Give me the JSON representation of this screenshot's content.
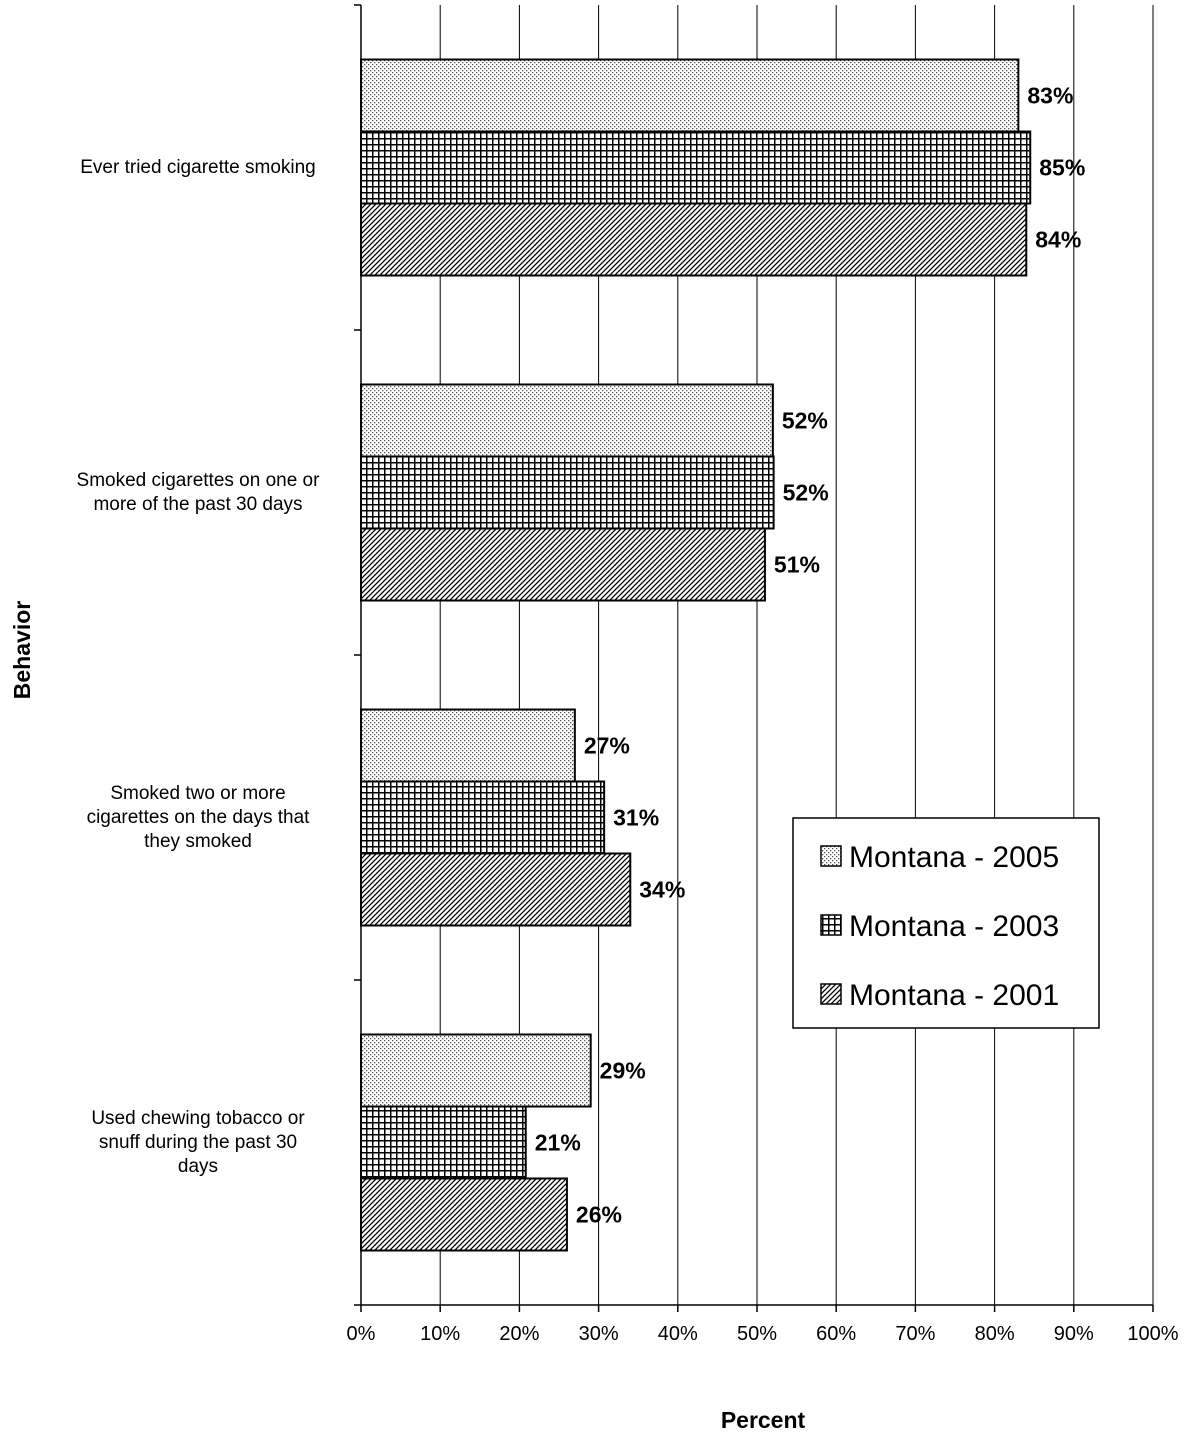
{
  "chart_data": {
    "type": "bar",
    "orientation": "horizontal",
    "categories": [
      "Ever tried cigarette smoking",
      "Smoked cigarettes on one or more of the past 30 days",
      "Smoked two or more cigarettes on the days that they smoked",
      "Used chewing tobacco or snuff during the past 30 days"
    ],
    "category_lines": [
      [
        "Ever tried cigarette smoking"
      ],
      [
        "Smoked cigarettes on one or",
        "more of the past 30 days"
      ],
      [
        "Smoked two or more",
        "cigarettes on the days that",
        "they smoked"
      ],
      [
        "Used chewing tobacco or",
        "snuff during the past 30",
        "days"
      ]
    ],
    "series": [
      {
        "name": "Montana - 2005",
        "values": [
          83,
          52,
          27,
          29
        ],
        "labels": [
          "83%",
          "52%",
          "27%",
          "29%"
        ],
        "pattern": "dots"
      },
      {
        "name": "Montana - 2003",
        "values": [
          84.5,
          52.1,
          30.7,
          20.8
        ],
        "labels": [
          "85%",
          "52%",
          "31%",
          "21%"
        ],
        "pattern": "grid"
      },
      {
        "name": "Montana - 2001",
        "values": [
          84,
          51,
          34,
          26
        ],
        "labels": [
          "84%",
          "51%",
          "34%",
          "26%"
        ],
        "pattern": "diagonal"
      }
    ],
    "xlabel": "Percent",
    "ylabel": "Behavior",
    "xlim": [
      0,
      100
    ],
    "xticks": [
      0,
      10,
      20,
      30,
      40,
      50,
      60,
      70,
      80,
      90,
      100
    ],
    "xtick_labels": [
      "0%",
      "10%",
      "20%",
      "30%",
      "40%",
      "50%",
      "60%",
      "70%",
      "80%",
      "90%",
      "100%"
    ],
    "grid": true,
    "legend_position": "right"
  }
}
